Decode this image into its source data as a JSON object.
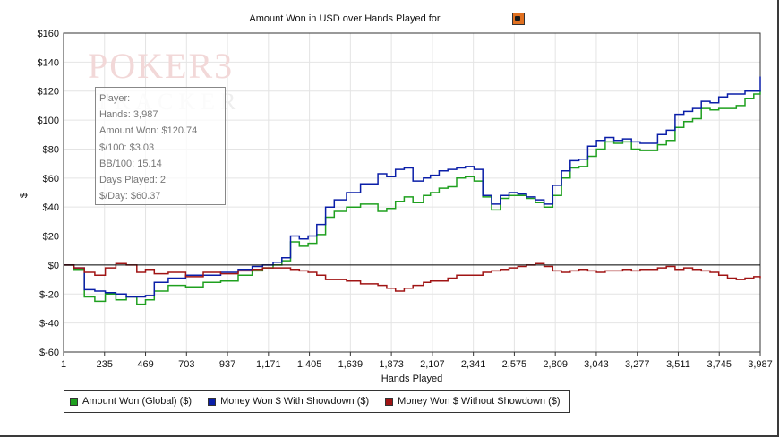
{
  "chart_data": {
    "type": "line",
    "title": "Amount Won in USD over Hands Played for",
    "xlabel": "Hands Played",
    "ylabel": "$",
    "xlim": [
      1,
      3987
    ],
    "ylim": [
      -60,
      160
    ],
    "x_ticks": [
      "1",
      "235",
      "469",
      "703",
      "937",
      "1,171",
      "1,405",
      "1,639",
      "1,873",
      "2,107",
      "2,341",
      "2,575",
      "2,809",
      "3,043",
      "3,277",
      "3,511",
      "3,745",
      "3,987"
    ],
    "y_ticks": [
      "$-60",
      "$-40",
      "$-20",
      "$0",
      "$20",
      "$40",
      "$60",
      "$80",
      "$100",
      "$120",
      "$140",
      "$160"
    ],
    "grid": true,
    "legend_position": "bottom",
    "series": [
      {
        "name": "Amount Won (Global) ($)",
        "color": "#1fa01f",
        "x": [
          1,
          60,
          120,
          180,
          240,
          300,
          360,
          420,
          470,
          520,
          600,
          700,
          800,
          900,
          1000,
          1080,
          1140,
          1200,
          1250,
          1300,
          1350,
          1400,
          1450,
          1500,
          1550,
          1620,
          1700,
          1800,
          1850,
          1900,
          1950,
          2000,
          2060,
          2100,
          2150,
          2200,
          2250,
          2300,
          2350,
          2400,
          2450,
          2500,
          2550,
          2600,
          2650,
          2700,
          2750,
          2800,
          2850,
          2900,
          2950,
          3000,
          3050,
          3100,
          3150,
          3200,
          3250,
          3300,
          3400,
          3450,
          3500,
          3550,
          3600,
          3650,
          3700,
          3750,
          3800,
          3850,
          3900,
          3950,
          3987
        ],
        "values": [
          0,
          -3,
          -22,
          -25,
          -20,
          -24,
          -22,
          -27,
          -24,
          -18,
          -14,
          -15,
          -12,
          -11,
          -7,
          -4,
          -2,
          0,
          3,
          16,
          13,
          15,
          21,
          33,
          37,
          40,
          42,
          37,
          39,
          44,
          47,
          43,
          48,
          50,
          53,
          54,
          60,
          61,
          58,
          47,
          38,
          46,
          48,
          48,
          46,
          43,
          40,
          48,
          60,
          67,
          68,
          75,
          80,
          85,
          84,
          85,
          80,
          79,
          83,
          86,
          95,
          99,
          101,
          108,
          107,
          108,
          108,
          110,
          115,
          118,
          121
        ]
      },
      {
        "name": "Money Won $ With Showdown ($)",
        "color": "#0a1ea8",
        "x": [
          1,
          60,
          120,
          180,
          240,
          300,
          360,
          420,
          470,
          520,
          600,
          700,
          800,
          900,
          1000,
          1080,
          1140,
          1200,
          1250,
          1300,
          1350,
          1400,
          1450,
          1500,
          1550,
          1620,
          1700,
          1800,
          1850,
          1900,
          1950,
          2000,
          2060,
          2100,
          2150,
          2200,
          2250,
          2300,
          2350,
          2400,
          2450,
          2500,
          2550,
          2600,
          2650,
          2700,
          2750,
          2800,
          2850,
          2900,
          2950,
          3000,
          3050,
          3100,
          3150,
          3200,
          3250,
          3300,
          3400,
          3450,
          3500,
          3550,
          3600,
          3650,
          3700,
          3750,
          3800,
          3850,
          3900,
          3950,
          3987
        ],
        "values": [
          0,
          -2,
          -17,
          -18,
          -19,
          -20,
          -22,
          -22,
          -21,
          -12,
          -9,
          -7,
          -7,
          -5,
          -3,
          -1,
          0,
          2,
          5,
          20,
          18,
          20,
          28,
          40,
          45,
          50,
          56,
          63,
          61,
          66,
          67,
          58,
          60,
          62,
          65,
          66,
          67,
          68,
          66,
          48,
          42,
          48,
          50,
          49,
          47,
          45,
          42,
          55,
          65,
          72,
          73,
          82,
          86,
          88,
          86,
          87,
          85,
          84,
          90,
          93,
          104,
          106,
          108,
          113,
          112,
          116,
          118,
          118,
          120,
          120,
          130
        ]
      },
      {
        "name": "Money Won $ Without Showdown ($)",
        "color": "#a01414",
        "x": [
          1,
          60,
          120,
          180,
          240,
          300,
          360,
          420,
          470,
          520,
          600,
          700,
          800,
          900,
          1000,
          1080,
          1140,
          1200,
          1250,
          1300,
          1350,
          1400,
          1450,
          1500,
          1550,
          1620,
          1700,
          1800,
          1850,
          1900,
          1950,
          2000,
          2060,
          2100,
          2150,
          2200,
          2250,
          2300,
          2350,
          2400,
          2450,
          2500,
          2550,
          2600,
          2650,
          2700,
          2750,
          2800,
          2850,
          2900,
          2950,
          3000,
          3050,
          3100,
          3150,
          3200,
          3250,
          3300,
          3400,
          3450,
          3500,
          3550,
          3600,
          3650,
          3700,
          3750,
          3800,
          3850,
          3900,
          3950,
          3987
        ],
        "values": [
          0,
          -2,
          -5,
          -7,
          -2,
          1,
          0,
          -5,
          -3,
          -6,
          -5,
          -8,
          -5,
          -6,
          -4,
          -3,
          -2,
          -2,
          -2,
          -3,
          -4,
          -5,
          -7,
          -10,
          -10,
          -11,
          -13,
          -14,
          -16,
          -18,
          -16,
          -14,
          -12,
          -11,
          -11,
          -9,
          -7,
          -7,
          -7,
          -5,
          -4,
          -3,
          -2,
          -1,
          0,
          1,
          -1,
          -4,
          -5,
          -4,
          -3,
          -4,
          -5,
          -4,
          -4,
          -3,
          -4,
          -3,
          -2,
          -1,
          -3,
          -2,
          -3,
          -4,
          -5,
          -7,
          -9,
          -10,
          -9,
          -8,
          -9
        ]
      }
    ]
  },
  "stats": {
    "player": "Player:",
    "hands": "Hands: 3,987",
    "amount_won": "Amount Won: $120.74",
    "per_100": "$/100: $3.03",
    "bb_per_100": "BB/100: 15.14",
    "days_played": "Days Played: 2",
    "per_day": "$/Day: $60.37"
  },
  "watermark": {
    "top": "POKER3",
    "bottom": "TRACKER"
  },
  "icons": {
    "player_icon": "player-icon"
  }
}
